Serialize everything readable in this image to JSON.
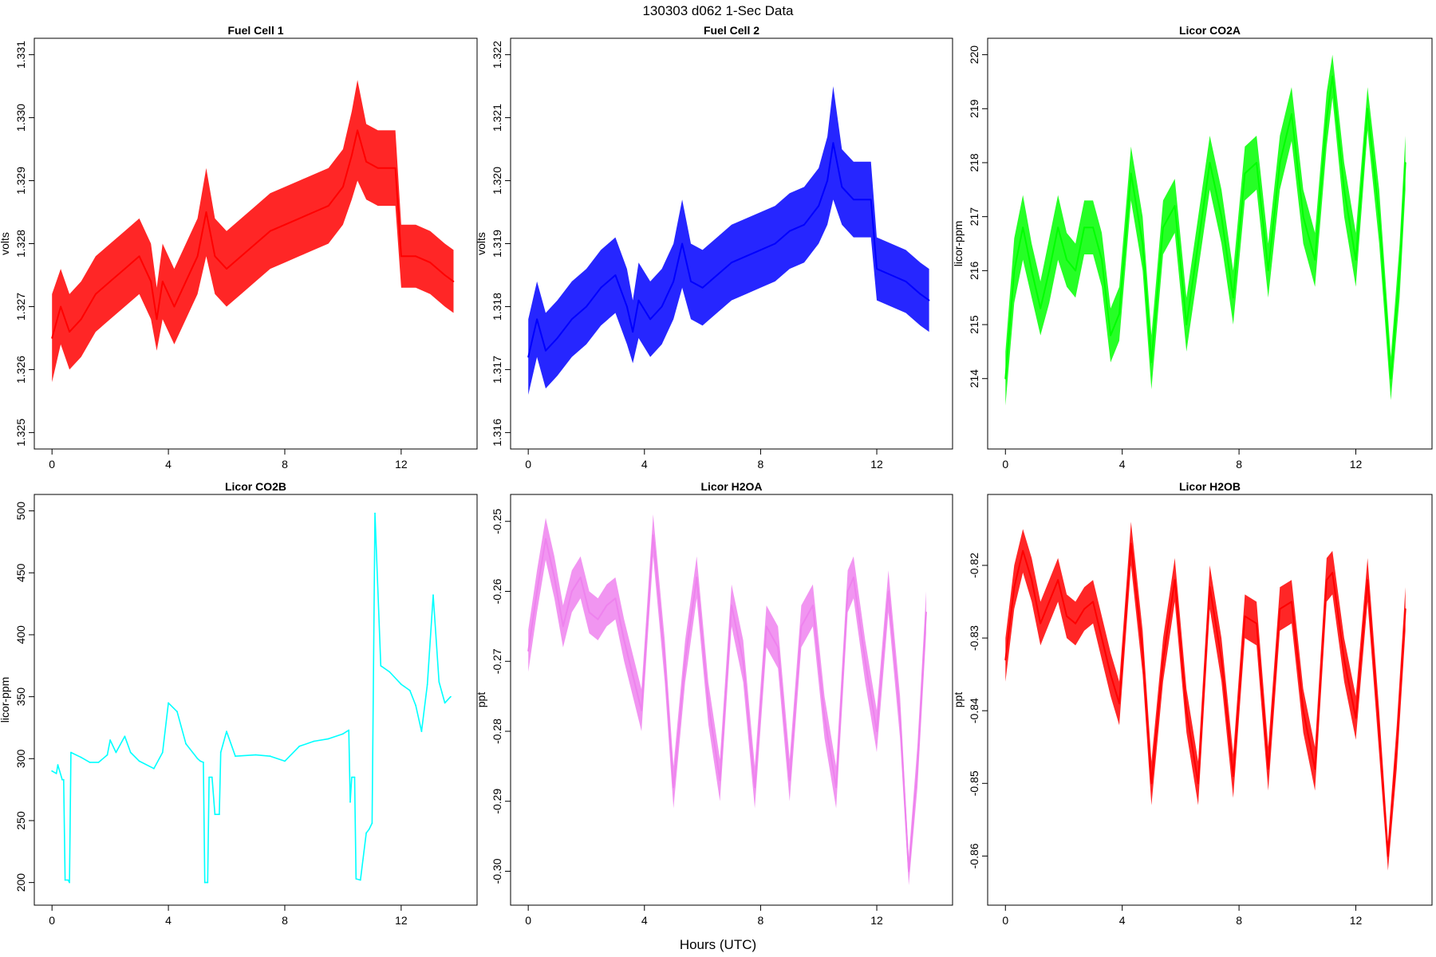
{
  "figure": {
    "title": "130303   d062   1-Sec Data",
    "xlabel": "Hours (UTC)"
  },
  "chart_data": [
    {
      "type": "line",
      "title": "Fuel Cell 1",
      "ylabel": "volts",
      "color": "#ff0000",
      "xlim": [
        0,
        14
      ],
      "ylim": [
        1.325,
        1.331
      ],
      "xticks": [
        0,
        4,
        8,
        12
      ],
      "yticks": [
        1.325,
        1.326,
        1.327,
        1.328,
        1.329,
        1.33,
        1.331
      ],
      "ytick_labels": [
        "1.325",
        "1.326",
        "1.327",
        "1.328",
        "1.329",
        "1.330",
        "1.331"
      ],
      "grid": false,
      "x": [
        0.0,
        0.3,
        0.6,
        1.0,
        1.5,
        2.0,
        2.5,
        3.0,
        3.4,
        3.6,
        3.8,
        4.2,
        4.6,
        5.0,
        5.3,
        5.6,
        6.0,
        6.5,
        7.0,
        7.5,
        8.0,
        8.5,
        9.0,
        9.5,
        10.0,
        10.3,
        10.5,
        10.8,
        11.2,
        11.8,
        12.0,
        12.5,
        13.0,
        13.5,
        13.8
      ],
      "y": [
        1.3265,
        1.327,
        1.3266,
        1.3268,
        1.3272,
        1.3274,
        1.3276,
        1.3278,
        1.3274,
        1.3268,
        1.3274,
        1.327,
        1.3274,
        1.3278,
        1.3285,
        1.3278,
        1.3276,
        1.3278,
        1.328,
        1.3282,
        1.3283,
        1.3284,
        1.3285,
        1.3286,
        1.3289,
        1.3294,
        1.3298,
        1.3293,
        1.3292,
        1.3292,
        1.3278,
        1.3278,
        1.3277,
        1.3275,
        1.3274
      ],
      "band": [
        0.0007,
        0.0006,
        0.0006,
        0.0006,
        0.0006,
        0.0006,
        0.0006,
        0.0006,
        0.0006,
        0.0005,
        0.0006,
        0.0006,
        0.0006,
        0.0006,
        0.0007,
        0.0006,
        0.0006,
        0.0006,
        0.0006,
        0.0006,
        0.0006,
        0.0006,
        0.0006,
        0.0006,
        0.0006,
        0.0007,
        0.0008,
        0.0006,
        0.0006,
        0.0006,
        0.0005,
        0.0005,
        0.0005,
        0.0005,
        0.0005
      ]
    },
    {
      "type": "line",
      "title": "Fuel Cell 2",
      "ylabel": "volts",
      "color": "#0000ff",
      "xlim": [
        0,
        14
      ],
      "ylim": [
        1.316,
        1.322
      ],
      "xticks": [
        0,
        4,
        8,
        12
      ],
      "yticks": [
        1.316,
        1.317,
        1.318,
        1.319,
        1.32,
        1.321,
        1.322
      ],
      "ytick_labels": [
        "1.316",
        "1.317",
        "1.318",
        "1.319",
        "1.320",
        "1.321",
        "1.322"
      ],
      "grid": false,
      "x": [
        0.0,
        0.3,
        0.6,
        1.0,
        1.5,
        2.0,
        2.5,
        3.0,
        3.4,
        3.6,
        3.8,
        4.2,
        4.6,
        5.0,
        5.3,
        5.6,
        6.0,
        6.5,
        7.0,
        7.5,
        8.0,
        8.5,
        9.0,
        9.5,
        10.0,
        10.3,
        10.5,
        10.8,
        11.2,
        11.8,
        12.0,
        12.5,
        13.0,
        13.5,
        13.8
      ],
      "y": [
        1.3172,
        1.3178,
        1.3173,
        1.3175,
        1.3178,
        1.318,
        1.3183,
        1.3185,
        1.318,
        1.3176,
        1.3181,
        1.3178,
        1.318,
        1.3184,
        1.319,
        1.3184,
        1.3183,
        1.3185,
        1.3187,
        1.3188,
        1.3189,
        1.319,
        1.3192,
        1.3193,
        1.3196,
        1.32,
        1.3206,
        1.3199,
        1.3197,
        1.3197,
        1.3186,
        1.3185,
        1.3184,
        1.3182,
        1.3181
      ],
      "band": [
        0.0006,
        0.0006,
        0.0006,
        0.0006,
        0.0006,
        0.0006,
        0.0006,
        0.0006,
        0.0006,
        0.0005,
        0.0006,
        0.0006,
        0.0006,
        0.0006,
        0.0007,
        0.0006,
        0.0006,
        0.0006,
        0.0006,
        0.0006,
        0.0006,
        0.0006,
        0.0006,
        0.0006,
        0.0006,
        0.0007,
        0.0009,
        0.0006,
        0.0006,
        0.0006,
        0.0005,
        0.0005,
        0.0005,
        0.0005,
        0.0005
      ]
    },
    {
      "type": "line",
      "title": "Licor CO2A",
      "ylabel": "licor-ppm",
      "color": "#00ff00",
      "xlim": [
        0,
        14
      ],
      "ylim": [
        213,
        220
      ],
      "xticks": [
        0,
        4,
        8,
        12
      ],
      "yticks": [
        214,
        215,
        216,
        217,
        218,
        219,
        220
      ],
      "ytick_labels": [
        "214",
        "215",
        "216",
        "217",
        "218",
        "219",
        "220"
      ],
      "grid": false,
      "x": [
        0.0,
        0.3,
        0.6,
        0.9,
        1.2,
        1.5,
        1.8,
        2.1,
        2.4,
        2.7,
        3.0,
        3.3,
        3.6,
        3.9,
        4.3,
        4.7,
        5.0,
        5.4,
        5.8,
        6.2,
        6.6,
        7.0,
        7.4,
        7.8,
        8.2,
        8.6,
        9.0,
        9.4,
        9.8,
        10.2,
        10.6,
        11.0,
        11.2,
        11.6,
        12.0,
        12.4,
        12.8,
        13.2,
        13.5,
        13.7
      ],
      "y": [
        214.0,
        216.0,
        216.8,
        216.0,
        215.3,
        216.0,
        216.8,
        216.2,
        216.0,
        216.8,
        216.8,
        216.2,
        214.8,
        215.2,
        217.8,
        216.5,
        214.3,
        216.8,
        217.2,
        215.0,
        216.5,
        218.0,
        217.0,
        215.5,
        217.8,
        218.0,
        216.0,
        218.0,
        218.9,
        217.0,
        216.2,
        218.8,
        219.6,
        217.5,
        216.2,
        219.0,
        217.0,
        214.0,
        216.0,
        218.0
      ],
      "band": [
        0.5,
        0.6,
        0.6,
        0.5,
        0.5,
        0.6,
        0.6,
        0.5,
        0.5,
        0.5,
        0.5,
        0.5,
        0.5,
        0.5,
        0.5,
        0.5,
        0.5,
        0.5,
        0.5,
        0.5,
        0.5,
        0.5,
        0.5,
        0.5,
        0.5,
        0.5,
        0.5,
        0.5,
        0.5,
        0.5,
        0.5,
        0.5,
        0.4,
        0.5,
        0.5,
        0.4,
        0.5,
        0.4,
        0.5,
        0.5
      ]
    },
    {
      "type": "line",
      "title": "Licor CO2B",
      "ylabel": "licor-ppm",
      "color": "#00ffff",
      "xlim": [
        0,
        14
      ],
      "ylim": [
        195,
        500
      ],
      "xticks": [
        0,
        4,
        8,
        12
      ],
      "yticks": [
        200,
        250,
        300,
        350,
        400,
        450,
        500
      ],
      "ytick_labels": [
        "200",
        "250",
        "300",
        "350",
        "400",
        "450",
        "500"
      ],
      "grid": false,
      "x": [
        0.0,
        0.15,
        0.2,
        0.35,
        0.4,
        0.45,
        0.55,
        0.6,
        0.65,
        1.0,
        1.3,
        1.6,
        1.9,
        2.0,
        2.2,
        2.5,
        2.7,
        3.0,
        3.5,
        3.8,
        4.0,
        4.3,
        4.6,
        5.0,
        5.1,
        5.2,
        5.25,
        5.35,
        5.4,
        5.5,
        5.6,
        5.75,
        5.8,
        6.0,
        6.3,
        7.0,
        7.5,
        8.0,
        8.5,
        9.0,
        9.5,
        10.0,
        10.2,
        10.25,
        10.3,
        10.4,
        10.45,
        10.6,
        10.8,
        10.9,
        11.0,
        11.1,
        11.3,
        11.6,
        12.0,
        12.3,
        12.5,
        12.7,
        12.9,
        13.1,
        13.3,
        13.5,
        13.7
      ],
      "y": [
        290,
        288,
        295,
        283,
        283,
        202,
        202,
        200,
        305,
        301,
        297,
        297,
        303,
        315,
        305,
        318,
        305,
        298,
        292,
        305,
        345,
        338,
        312,
        300,
        298,
        297,
        200,
        200,
        285,
        285,
        255,
        255,
        305,
        322,
        302,
        303,
        302,
        298,
        310,
        314,
        316,
        320,
        323,
        265,
        285,
        285,
        203,
        202,
        240,
        243,
        248,
        498,
        375,
        370,
        360,
        355,
        343,
        322,
        360,
        432,
        362,
        345,
        350
      ],
      "band": []
    },
    {
      "type": "line",
      "title": "Licor H2OA",
      "ylabel": "ppt",
      "color": "#ee82ee",
      "xlim": [
        0,
        14
      ],
      "ylim": [
        -0.3025,
        -0.2485
      ],
      "xticks": [
        0,
        4,
        8,
        12
      ],
      "yticks": [
        -0.3,
        -0.29,
        -0.28,
        -0.27,
        -0.26,
        -0.25
      ],
      "ytick_labels": [
        "-0.30",
        "-0.29",
        "-0.28",
        "-0.27",
        "-0.26",
        "-0.25"
      ],
      "grid": false,
      "x": [
        0.0,
        0.3,
        0.6,
        0.9,
        1.2,
        1.5,
        1.8,
        2.1,
        2.4,
        2.7,
        3.0,
        3.3,
        3.6,
        3.9,
        4.3,
        4.7,
        5.0,
        5.4,
        5.8,
        6.2,
        6.6,
        7.0,
        7.4,
        7.8,
        8.2,
        8.6,
        9.0,
        9.4,
        9.8,
        10.2,
        10.6,
        11.0,
        11.2,
        11.6,
        12.0,
        12.4,
        12.8,
        13.1,
        13.4,
        13.7
      ],
      "y": [
        -0.2685,
        -0.26,
        -0.2525,
        -0.258,
        -0.265,
        -0.26,
        -0.258,
        -0.263,
        -0.264,
        -0.262,
        -0.261,
        -0.267,
        -0.272,
        -0.277,
        -0.252,
        -0.27,
        -0.288,
        -0.27,
        -0.258,
        -0.276,
        -0.287,
        -0.262,
        -0.27,
        -0.288,
        -0.265,
        -0.268,
        -0.287,
        -0.265,
        -0.262,
        -0.278,
        -0.288,
        -0.26,
        -0.258,
        -0.27,
        -0.28,
        -0.26,
        -0.278,
        -0.3,
        -0.285,
        -0.263
      ],
      "band": [
        0.003,
        0.003,
        0.003,
        0.003,
        0.003,
        0.003,
        0.003,
        0.003,
        0.003,
        0.003,
        0.003,
        0.003,
        0.003,
        0.003,
        0.003,
        0.003,
        0.003,
        0.003,
        0.003,
        0.003,
        0.003,
        0.003,
        0.003,
        0.003,
        0.003,
        0.003,
        0.003,
        0.003,
        0.003,
        0.003,
        0.003,
        0.003,
        0.003,
        0.003,
        0.003,
        0.003,
        0.003,
        0.002,
        0.003,
        0.003
      ]
    },
    {
      "type": "line",
      "title": "Licor H2OB",
      "ylabel": "ppt",
      "color": "#ff0000",
      "xlim": [
        0,
        14
      ],
      "ylim": [
        -0.8645,
        -0.8125
      ],
      "xticks": [
        0,
        4,
        8,
        12
      ],
      "yticks": [
        -0.86,
        -0.85,
        -0.84,
        -0.83,
        -0.82
      ],
      "ytick_labels": [
        "-0.86",
        "-0.85",
        "-0.84",
        "-0.83",
        "-0.82"
      ],
      "grid": false,
      "x": [
        0.0,
        0.3,
        0.6,
        0.9,
        1.2,
        1.5,
        1.8,
        2.1,
        2.4,
        2.7,
        3.0,
        3.3,
        3.6,
        3.9,
        4.3,
        4.7,
        5.0,
        5.4,
        5.8,
        6.2,
        6.6,
        7.0,
        7.4,
        7.8,
        8.2,
        8.6,
        9.0,
        9.4,
        9.8,
        10.2,
        10.6,
        11.0,
        11.2,
        11.6,
        12.0,
        12.4,
        12.8,
        13.1,
        13.4,
        13.7
      ],
      "y": [
        -0.833,
        -0.823,
        -0.818,
        -0.822,
        -0.828,
        -0.825,
        -0.822,
        -0.827,
        -0.828,
        -0.826,
        -0.825,
        -0.83,
        -0.835,
        -0.839,
        -0.817,
        -0.832,
        -0.85,
        -0.833,
        -0.822,
        -0.84,
        -0.85,
        -0.823,
        -0.833,
        -0.849,
        -0.827,
        -0.828,
        -0.848,
        -0.826,
        -0.825,
        -0.84,
        -0.848,
        -0.822,
        -0.821,
        -0.833,
        -0.841,
        -0.822,
        -0.843,
        -0.86,
        -0.845,
        -0.826
      ],
      "band": [
        0.003,
        0.003,
        0.003,
        0.003,
        0.003,
        0.003,
        0.003,
        0.003,
        0.003,
        0.003,
        0.003,
        0.003,
        0.003,
        0.003,
        0.003,
        0.003,
        0.003,
        0.003,
        0.003,
        0.003,
        0.003,
        0.003,
        0.003,
        0.003,
        0.003,
        0.003,
        0.003,
        0.003,
        0.003,
        0.003,
        0.003,
        0.003,
        0.003,
        0.003,
        0.003,
        0.003,
        0.003,
        0.002,
        0.003,
        0.003
      ]
    }
  ]
}
